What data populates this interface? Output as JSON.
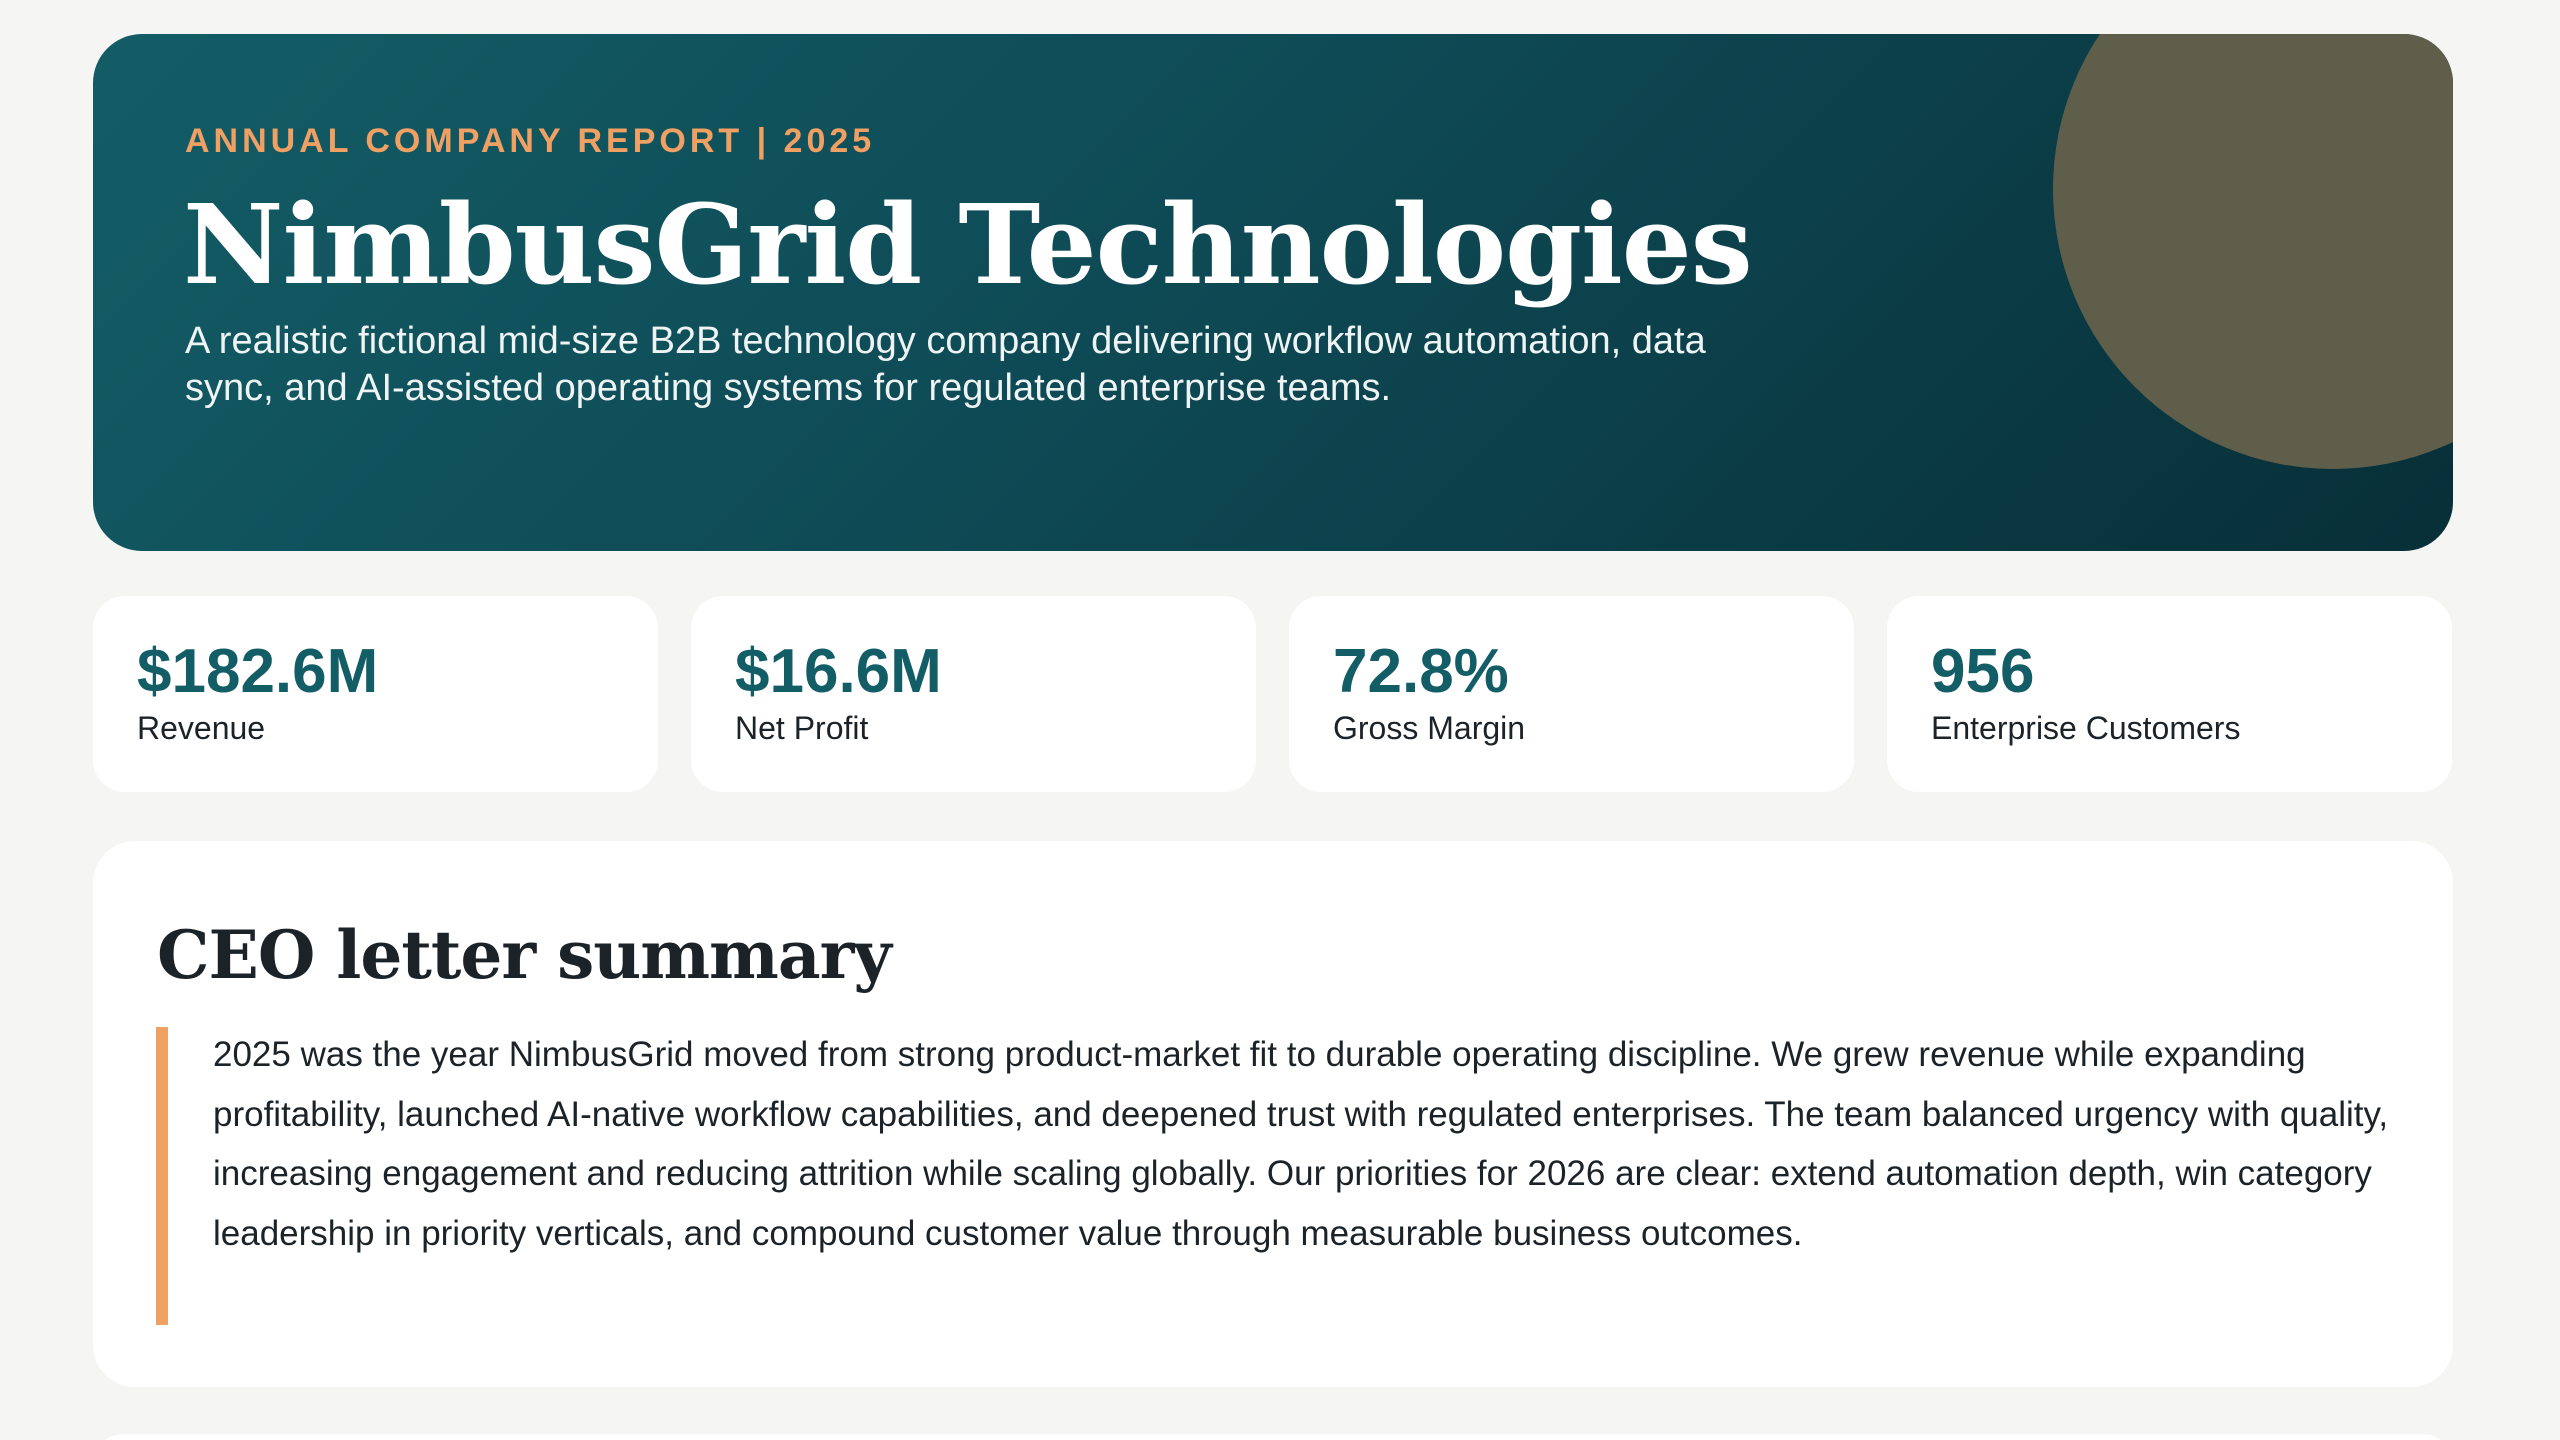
{
  "hero": {
    "eyebrow": "ANNUAL COMPANY REPORT | 2025",
    "title": "NimbusGrid Technologies",
    "description": "A realistic fictional mid-size B2B technology company delivering workflow automation, data sync, and AI-assisted operating systems for regulated enterprise teams."
  },
  "stats": [
    {
      "value": "$182.6M",
      "label": "Revenue"
    },
    {
      "value": "$16.6M",
      "label": "Net Profit"
    },
    {
      "value": "72.8%",
      "label": "Gross Margin"
    },
    {
      "value": "956",
      "label": "Enterprise Customers"
    }
  ],
  "ceo_letter": {
    "title": "CEO letter summary",
    "text": "2025 was the year NimbusGrid moved from strong product-market fit to durable operating discipline. We grew revenue while expanding profitability, launched AI-native workflow capabilities, and deepened trust with regulated enterprises. The team balanced urgency with quality, increasing engagement and reducing attrition while scaling globally. Our priorities for 2026 are clear: extend automation depth, win category leadership in priority verticals, and compound customer value through measurable business outcomes."
  },
  "colors": {
    "accent": "#f0a063",
    "brand": "#135d66",
    "background": "#f5f5f3"
  }
}
